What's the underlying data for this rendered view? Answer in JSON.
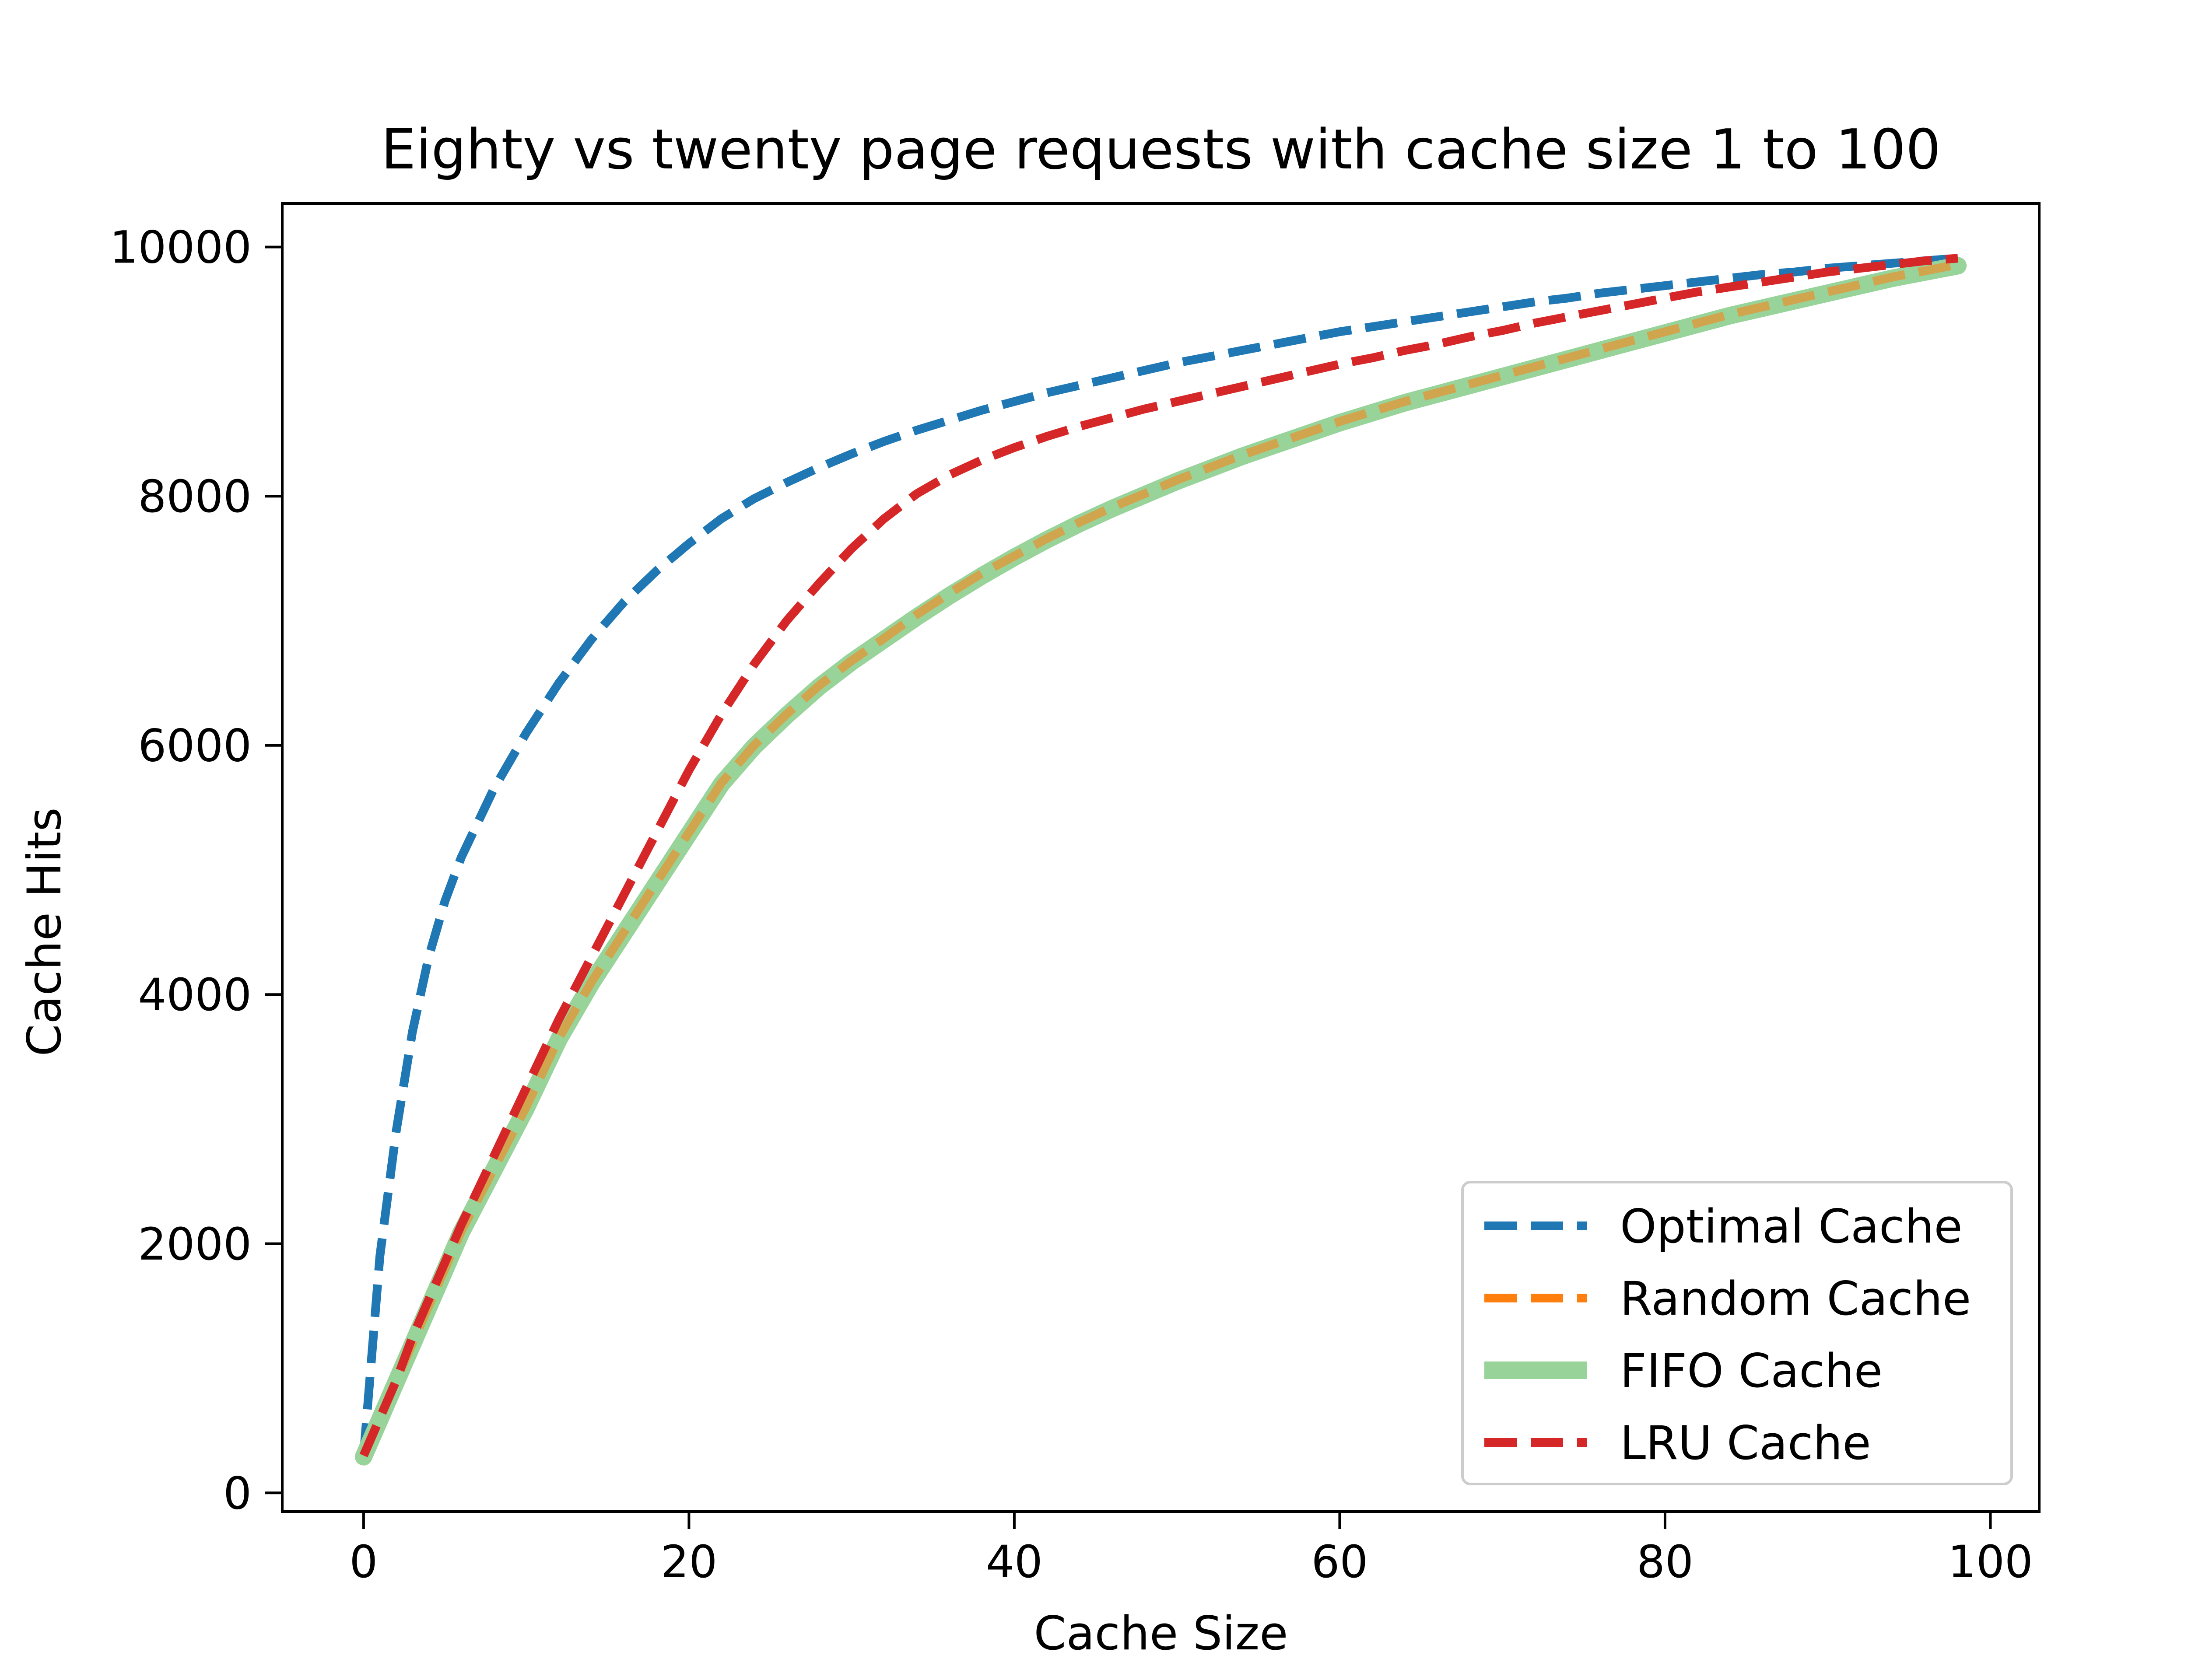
{
  "chart_data": {
    "type": "line",
    "title": "Eighty vs twenty page requests with cache size 1 to 100",
    "xlabel": "Cache Size",
    "ylabel": "Cache Hits",
    "xlim": [
      -5,
      103
    ],
    "ylim": [
      -150,
      10350
    ],
    "xticks": [
      0,
      20,
      40,
      60,
      80,
      100
    ],
    "yticks": [
      0,
      2000,
      4000,
      6000,
      8000,
      10000
    ],
    "grid": false,
    "legend_position": "lower-right",
    "x": [
      0,
      1,
      2,
      3,
      4,
      5,
      6,
      8,
      10,
      12,
      14,
      16,
      18,
      20,
      22,
      24,
      26,
      28,
      30,
      32,
      34,
      36,
      38,
      40,
      42,
      44,
      46,
      48,
      50,
      52,
      54,
      56,
      58,
      60,
      62,
      64,
      66,
      68,
      70,
      72,
      74,
      76,
      78,
      80,
      82,
      84,
      86,
      88,
      90,
      92,
      94,
      96,
      98
    ],
    "series": [
      {
        "name": "Optimal Cache",
        "color": "#1f77b4",
        "style": "dashed",
        "values": [
          300,
          1900,
          2900,
          3700,
          4300,
          4750,
          5100,
          5650,
          6100,
          6500,
          6850,
          7150,
          7400,
          7620,
          7820,
          7980,
          8110,
          8230,
          8340,
          8440,
          8530,
          8610,
          8690,
          8760,
          8830,
          8890,
          8950,
          9010,
          9070,
          9120,
          9170,
          9220,
          9270,
          9320,
          9360,
          9400,
          9440,
          9480,
          9520,
          9560,
          9590,
          9630,
          9660,
          9690,
          9720,
          9750,
          9780,
          9800,
          9830,
          9850,
          9870,
          9890,
          9910
        ]
      },
      {
        "name": "Random Cache",
        "color": "#ff7f0e",
        "style": "dashed",
        "values": [
          300,
          600,
          900,
          1200,
          1500,
          1800,
          2100,
          2600,
          3100,
          3650,
          4100,
          4500,
          4900,
          5300,
          5700,
          6000,
          6250,
          6480,
          6680,
          6860,
          7050,
          7220,
          7380,
          7520,
          7660,
          7790,
          7910,
          8020,
          8130,
          8230,
          8330,
          8420,
          8510,
          8600,
          8680,
          8760,
          8830,
          8900,
          8970,
          9040,
          9110,
          9180,
          9250,
          9320,
          9390,
          9460,
          9520,
          9580,
          9640,
          9700,
          9760,
          9810,
          9860
        ]
      },
      {
        "name": "FIFO Cache",
        "color": "#98d39a",
        "style": "solid",
        "values": [
          290,
          590,
          890,
          1190,
          1490,
          1790,
          2090,
          2590,
          3090,
          3640,
          4090,
          4490,
          4890,
          5290,
          5690,
          5990,
          6240,
          6470,
          6670,
          6850,
          7030,
          7200,
          7360,
          7510,
          7650,
          7780,
          7900,
          8010,
          8120,
          8220,
          8320,
          8410,
          8500,
          8590,
          8670,
          8750,
          8820,
          8890,
          8960,
          9030,
          9100,
          9170,
          9240,
          9310,
          9380,
          9450,
          9510,
          9570,
          9630,
          9690,
          9750,
          9800,
          9850
        ]
      },
      {
        "name": "LRU Cache",
        "color": "#d62728",
        "style": "dashed",
        "values": [
          300,
          600,
          900,
          1250,
          1550,
          1850,
          2150,
          2700,
          3250,
          3800,
          4300,
          4800,
          5300,
          5800,
          6250,
          6650,
          7000,
          7300,
          7580,
          7820,
          8020,
          8170,
          8290,
          8390,
          8480,
          8560,
          8630,
          8700,
          8760,
          8820,
          8880,
          8940,
          9000,
          9060,
          9110,
          9170,
          9220,
          9280,
          9330,
          9390,
          9440,
          9490,
          9540,
          9590,
          9640,
          9680,
          9720,
          9760,
          9800,
          9830,
          9860,
          9890,
          9910
        ]
      }
    ]
  }
}
